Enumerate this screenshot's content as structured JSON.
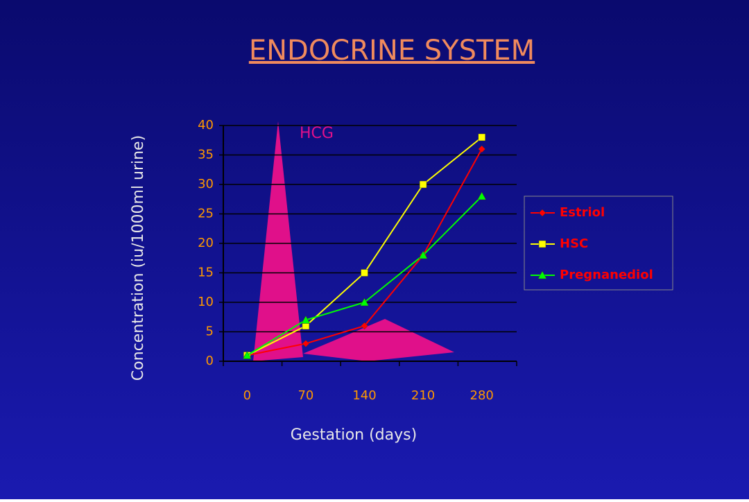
{
  "chart_data": {
    "type": "line",
    "title": "ENDOCRINE SYSTEM",
    "x_label": "Gestation (days)",
    "y_label": "Concentration (iu/1000ml urine)",
    "annotation": "HCG",
    "categories": [
      "0",
      "70",
      "140",
      "210",
      "280"
    ],
    "series": [
      {
        "name": "Estriol",
        "color": "#ff0000",
        "marker": "diamond",
        "values": [
          1,
          3,
          6,
          18,
          36
        ]
      },
      {
        "name": "HSC",
        "color": "#ffff00",
        "marker": "square",
        "values": [
          1,
          6,
          15,
          30,
          38
        ]
      },
      {
        "name": "Pregnanediol",
        "color": "#00ff00",
        "marker": "triangle",
        "values": [
          1,
          7,
          10,
          18,
          28
        ]
      }
    ],
    "ylim": [
      0,
      40
    ],
    "yticks": [
      0,
      5,
      10,
      15,
      20,
      25,
      30,
      35,
      40
    ],
    "grid": true,
    "legend": "right"
  }
}
